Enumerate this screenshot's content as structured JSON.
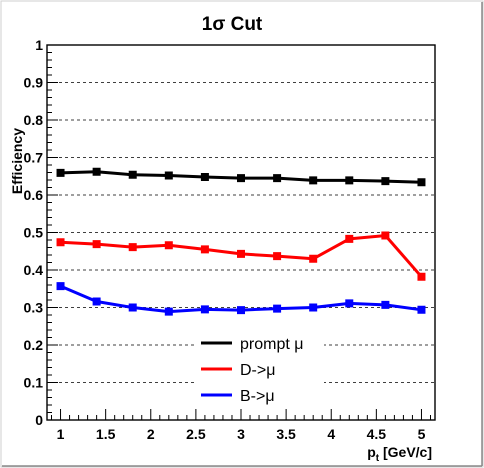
{
  "chart_data": {
    "type": "line",
    "title": "1σ Cut",
    "xlabel": "p_t [GeV/c]",
    "ylabel": "Efficiency",
    "xlim": [
      0.85,
      5.15
    ],
    "ylim": [
      0,
      1
    ],
    "x_ticks": [
      "1",
      "1.5",
      "2",
      "2.5",
      "3",
      "3.5",
      "4",
      "4.5",
      "5"
    ],
    "y_ticks": [
      "0",
      "0.1",
      "0.2",
      "0.3",
      "0.4",
      "0.5",
      "0.6",
      "0.7",
      "0.8",
      "0.9",
      "1"
    ],
    "grid": "horizontal dashed",
    "legend_position": "bottom-center",
    "x": [
      1.0,
      1.4,
      1.8,
      2.2,
      2.6,
      3.0,
      3.4,
      3.8,
      4.2,
      4.6,
      5.0
    ],
    "series": [
      {
        "name": "prompt μ",
        "color": "#000000",
        "values": [
          0.659,
          0.662,
          0.654,
          0.652,
          0.648,
          0.645,
          0.645,
          0.639,
          0.639,
          0.637,
          0.634
        ]
      },
      {
        "name": "D->μ",
        "color": "#ff0000",
        "values": [
          0.474,
          0.469,
          0.461,
          0.466,
          0.455,
          0.443,
          0.437,
          0.43,
          0.483,
          0.492,
          0.382
        ]
      },
      {
        "name": "B->μ",
        "color": "#0000ff",
        "values": [
          0.357,
          0.316,
          0.3,
          0.289,
          0.295,
          0.293,
          0.297,
          0.3,
          0.311,
          0.307,
          0.294
        ]
      }
    ]
  }
}
